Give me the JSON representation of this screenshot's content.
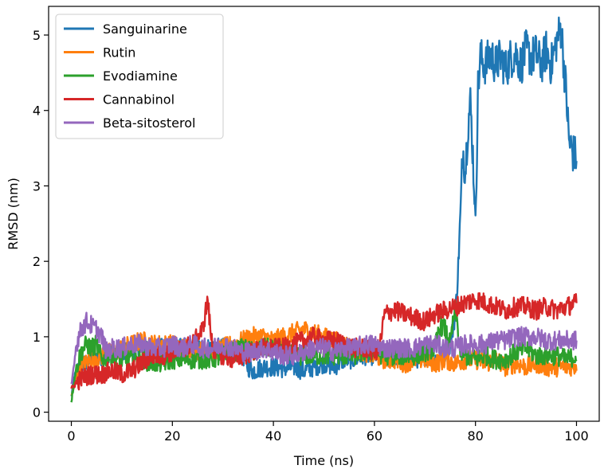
{
  "chart_data": {
    "type": "line",
    "title": "",
    "xlabel": "Time (ns)",
    "ylabel": "RMSD (nm)",
    "xlim": [
      -4.5,
      104.5
    ],
    "ylim": [
      -0.12,
      5.38
    ],
    "xticks": [
      0,
      20,
      40,
      60,
      80,
      100
    ],
    "yticks": [
      0,
      1,
      2,
      3,
      4,
      5
    ],
    "grid": false,
    "legend_position": "upper-left",
    "series": [
      {
        "name": "Sanguinarine",
        "color": "#1f77b4",
        "points": [
          [
            0,
            0.2
          ],
          [
            0.5,
            0.45
          ],
          [
            1,
            0.55
          ],
          [
            2,
            0.6
          ],
          [
            4,
            0.7
          ],
          [
            6,
            0.75
          ],
          [
            8,
            0.8
          ],
          [
            10,
            0.8
          ],
          [
            12,
            0.85
          ],
          [
            14,
            0.85
          ],
          [
            16,
            0.85
          ],
          [
            18,
            0.85
          ],
          [
            20,
            0.85
          ],
          [
            22,
            0.85
          ],
          [
            24,
            0.85
          ],
          [
            26,
            0.85
          ],
          [
            28,
            0.85
          ],
          [
            30,
            0.85
          ],
          [
            32,
            0.8
          ],
          [
            34,
            0.75
          ],
          [
            35,
            0.6
          ],
          [
            36,
            0.55
          ],
          [
            38,
            0.6
          ],
          [
            40,
            0.6
          ],
          [
            42,
            0.58
          ],
          [
            44,
            0.6
          ],
          [
            46,
            0.55
          ],
          [
            48,
            0.6
          ],
          [
            50,
            0.65
          ],
          [
            52,
            0.6
          ],
          [
            54,
            0.7
          ],
          [
            56,
            0.7
          ],
          [
            58,
            0.75
          ],
          [
            60,
            0.75
          ],
          [
            62,
            0.7
          ],
          [
            64,
            0.75
          ],
          [
            66,
            0.75
          ],
          [
            68,
            0.7
          ],
          [
            70,
            0.75
          ],
          [
            72,
            0.7
          ],
          [
            74,
            0.8
          ],
          [
            75,
            0.9
          ],
          [
            76,
            1.3
          ],
          [
            76.5,
            1.8
          ],
          [
            77,
            2.6
          ],
          [
            77.5,
            3.5
          ],
          [
            78,
            3.2
          ],
          [
            78.5,
            3.8
          ],
          [
            79,
            4.1
          ],
          [
            79.5,
            3.4
          ],
          [
            80,
            2.5
          ],
          [
            80.5,
            4.3
          ],
          [
            81,
            4.7
          ],
          [
            82,
            4.6
          ],
          [
            83,
            4.75
          ],
          [
            84,
            4.6
          ],
          [
            85,
            4.7
          ],
          [
            86,
            4.55
          ],
          [
            87,
            4.7
          ],
          [
            88,
            4.75
          ],
          [
            89,
            4.6
          ],
          [
            90,
            4.8
          ],
          [
            91,
            4.7
          ],
          [
            92,
            4.75
          ],
          [
            93,
            4.6
          ],
          [
            94,
            4.8
          ],
          [
            95,
            4.6
          ],
          [
            96,
            4.9
          ],
          [
            97,
            5.1
          ],
          [
            97.5,
            4.6
          ],
          [
            98,
            4.2
          ],
          [
            98.5,
            3.6
          ],
          [
            99,
            3.5
          ],
          [
            99.5,
            3.4
          ],
          [
            100,
            3.4
          ]
        ]
      },
      {
        "name": "Rutin",
        "color": "#ff7f0e",
        "points": [
          [
            0,
            0.2
          ],
          [
            1,
            0.5
          ],
          [
            2,
            0.6
          ],
          [
            4,
            0.7
          ],
          [
            6,
            0.75
          ],
          [
            8,
            0.8
          ],
          [
            10,
            0.85
          ],
          [
            12,
            0.9
          ],
          [
            14,
            0.95
          ],
          [
            16,
            0.9
          ],
          [
            18,
            0.9
          ],
          [
            20,
            0.9
          ],
          [
            22,
            0.85
          ],
          [
            24,
            0.85
          ],
          [
            26,
            0.8
          ],
          [
            28,
            0.8
          ],
          [
            30,
            0.85
          ],
          [
            32,
            0.9
          ],
          [
            34,
            0.95
          ],
          [
            36,
            1.0
          ],
          [
            38,
            1.0
          ],
          [
            40,
            0.95
          ],
          [
            42,
            1.0
          ],
          [
            44,
            1.05
          ],
          [
            46,
            1.1
          ],
          [
            48,
            1.05
          ],
          [
            50,
            1.0
          ],
          [
            52,
            0.95
          ],
          [
            54,
            0.9
          ],
          [
            56,
            0.85
          ],
          [
            58,
            0.8
          ],
          [
            60,
            0.75
          ],
          [
            62,
            0.7
          ],
          [
            64,
            0.7
          ],
          [
            66,
            0.65
          ],
          [
            68,
            0.7
          ],
          [
            70,
            0.7
          ],
          [
            72,
            0.65
          ],
          [
            74,
            0.7
          ],
          [
            76,
            0.65
          ],
          [
            78,
            0.7
          ],
          [
            80,
            0.7
          ],
          [
            82,
            0.65
          ],
          [
            84,
            0.7
          ],
          [
            86,
            0.6
          ],
          [
            88,
            0.65
          ],
          [
            90,
            0.6
          ],
          [
            92,
            0.65
          ],
          [
            94,
            0.6
          ],
          [
            96,
            0.6
          ],
          [
            98,
            0.6
          ],
          [
            100,
            0.62
          ]
        ]
      },
      {
        "name": "Evodiamine",
        "color": "#2ca02c",
        "points": [
          [
            0,
            0.15
          ],
          [
            1,
            0.6
          ],
          [
            2,
            0.8
          ],
          [
            3,
            0.9
          ],
          [
            4,
            0.85
          ],
          [
            5,
            0.9
          ],
          [
            6,
            0.7
          ],
          [
            8,
            0.75
          ],
          [
            10,
            0.7
          ],
          [
            12,
            0.7
          ],
          [
            14,
            0.7
          ],
          [
            16,
            0.65
          ],
          [
            18,
            0.65
          ],
          [
            20,
            0.7
          ],
          [
            22,
            0.7
          ],
          [
            24,
            0.7
          ],
          [
            26,
            0.7
          ],
          [
            28,
            0.7
          ],
          [
            30,
            0.75
          ],
          [
            32,
            0.8
          ],
          [
            34,
            0.85
          ],
          [
            36,
            0.8
          ],
          [
            38,
            0.85
          ],
          [
            40,
            0.85
          ],
          [
            42,
            0.8
          ],
          [
            44,
            0.75
          ],
          [
            46,
            0.75
          ],
          [
            48,
            0.75
          ],
          [
            50,
            0.75
          ],
          [
            52,
            0.75
          ],
          [
            54,
            0.75
          ],
          [
            56,
            0.75
          ],
          [
            58,
            0.8
          ],
          [
            60,
            0.8
          ],
          [
            62,
            0.75
          ],
          [
            64,
            0.75
          ],
          [
            66,
            0.75
          ],
          [
            68,
            0.75
          ],
          [
            70,
            0.8
          ],
          [
            72,
            0.85
          ],
          [
            73,
            1.15
          ],
          [
            74,
            1.1
          ],
          [
            75,
            0.9
          ],
          [
            76,
            1.4
          ],
          [
            77,
            0.8
          ],
          [
            78,
            0.75
          ],
          [
            80,
            0.7
          ],
          [
            82,
            0.75
          ],
          [
            84,
            0.7
          ],
          [
            86,
            0.7
          ],
          [
            88,
            0.8
          ],
          [
            90,
            0.85
          ],
          [
            92,
            0.75
          ],
          [
            94,
            0.75
          ],
          [
            96,
            0.75
          ],
          [
            98,
            0.7
          ],
          [
            100,
            0.75
          ]
        ]
      },
      {
        "name": "Cannabinol",
        "color": "#d62728",
        "points": [
          [
            0,
            0.3
          ],
          [
            1,
            0.4
          ],
          [
            2,
            0.45
          ],
          [
            4,
            0.5
          ],
          [
            6,
            0.5
          ],
          [
            8,
            0.55
          ],
          [
            10,
            0.5
          ],
          [
            12,
            0.55
          ],
          [
            14,
            0.65
          ],
          [
            16,
            0.75
          ],
          [
            18,
            0.75
          ],
          [
            20,
            0.8
          ],
          [
            22,
            0.85
          ],
          [
            24,
            0.9
          ],
          [
            25,
            1.0
          ],
          [
            26,
            1.1
          ],
          [
            27,
            1.5
          ],
          [
            27.5,
            1.1
          ],
          [
            28,
            0.85
          ],
          [
            30,
            0.75
          ],
          [
            32,
            0.7
          ],
          [
            34,
            0.75
          ],
          [
            36,
            0.8
          ],
          [
            38,
            0.85
          ],
          [
            40,
            0.85
          ],
          [
            42,
            0.85
          ],
          [
            44,
            0.9
          ],
          [
            46,
            0.95
          ],
          [
            48,
            1.0
          ],
          [
            50,
            0.95
          ],
          [
            52,
            0.95
          ],
          [
            54,
            0.9
          ],
          [
            56,
            0.85
          ],
          [
            58,
            0.85
          ],
          [
            60,
            0.8
          ],
          [
            61,
            0.85
          ],
          [
            62,
            1.3
          ],
          [
            64,
            1.35
          ],
          [
            66,
            1.3
          ],
          [
            68,
            1.25
          ],
          [
            70,
            1.2
          ],
          [
            72,
            1.3
          ],
          [
            74,
            1.35
          ],
          [
            76,
            1.4
          ],
          [
            78,
            1.45
          ],
          [
            80,
            1.5
          ],
          [
            82,
            1.45
          ],
          [
            84,
            1.4
          ],
          [
            86,
            1.35
          ],
          [
            88,
            1.4
          ],
          [
            90,
            1.4
          ],
          [
            92,
            1.35
          ],
          [
            94,
            1.4
          ],
          [
            96,
            1.35
          ],
          [
            98,
            1.4
          ],
          [
            100,
            1.45
          ]
        ]
      },
      {
        "name": "Beta-sitosterol",
        "color": "#9467bd",
        "points": [
          [
            0,
            0.35
          ],
          [
            1,
            0.9
          ],
          [
            2,
            1.1
          ],
          [
            3,
            1.2
          ],
          [
            4,
            1.15
          ],
          [
            5,
            1.1
          ],
          [
            6,
            1.0
          ],
          [
            7,
            0.8
          ],
          [
            8,
            0.85
          ],
          [
            10,
            0.85
          ],
          [
            12,
            0.9
          ],
          [
            14,
            0.9
          ],
          [
            16,
            0.85
          ],
          [
            18,
            0.85
          ],
          [
            20,
            0.9
          ],
          [
            22,
            0.85
          ],
          [
            24,
            0.9
          ],
          [
            26,
            0.85
          ],
          [
            28,
            0.85
          ],
          [
            30,
            0.9
          ],
          [
            32,
            0.85
          ],
          [
            34,
            0.8
          ],
          [
            36,
            0.8
          ],
          [
            38,
            0.85
          ],
          [
            40,
            0.8
          ],
          [
            42,
            0.75
          ],
          [
            44,
            0.75
          ],
          [
            46,
            0.8
          ],
          [
            48,
            0.85
          ],
          [
            50,
            0.85
          ],
          [
            52,
            0.8
          ],
          [
            54,
            0.85
          ],
          [
            56,
            0.85
          ],
          [
            58,
            0.9
          ],
          [
            60,
            0.9
          ],
          [
            62,
            0.85
          ],
          [
            64,
            0.85
          ],
          [
            66,
            0.85
          ],
          [
            68,
            0.85
          ],
          [
            70,
            0.9
          ],
          [
            72,
            0.9
          ],
          [
            74,
            0.85
          ],
          [
            76,
            0.85
          ],
          [
            78,
            0.9
          ],
          [
            80,
            0.9
          ],
          [
            82,
            0.9
          ],
          [
            84,
            0.95
          ],
          [
            86,
            0.95
          ],
          [
            88,
            1.0
          ],
          [
            90,
            1.0
          ],
          [
            92,
            1.0
          ],
          [
            94,
            0.95
          ],
          [
            96,
            0.95
          ],
          [
            98,
            0.95
          ],
          [
            100,
            0.95
          ]
        ]
      }
    ]
  }
}
